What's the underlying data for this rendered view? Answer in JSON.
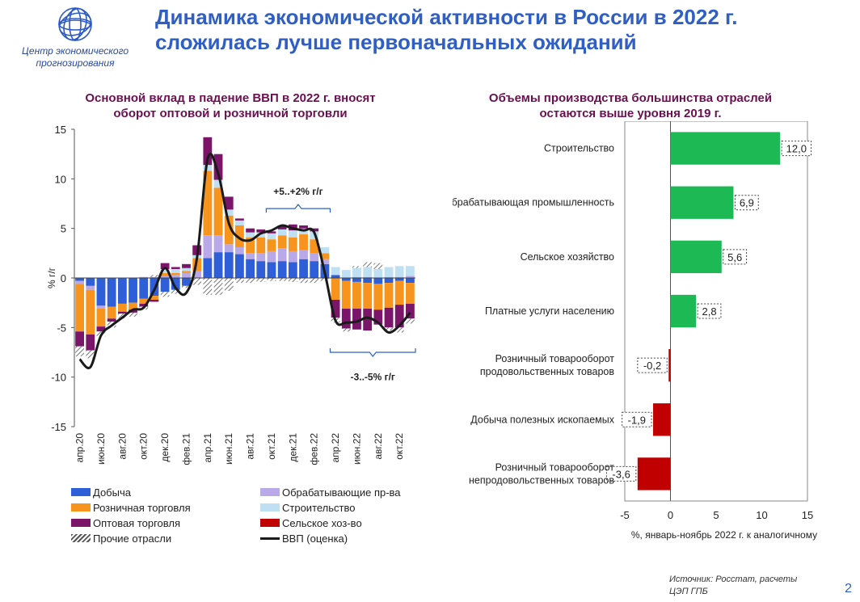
{
  "header": {
    "logo_line1": "Центр экономического",
    "logo_line2": "прогнозирования",
    "title_line1": "Динамика экономической активности в России в 2022 г.",
    "title_line2": "сложилась лучше первоначальных ожиданий"
  },
  "colors": {
    "mining": "#2e5fd8",
    "manufacturing": "#b9a9e8",
    "retail": "#f7941d",
    "construction": "#bfe0f2",
    "wholesale": "#7a156a",
    "agriculture": "#c00000",
    "other": "#6a6a6a",
    "gdp_line": "#1a1a1a",
    "positive_bar": "#1db954",
    "negative_bar": "#c00000",
    "title": "#2f5fc4",
    "subtitle": "#6a0f50"
  },
  "chart_data": [
    {
      "type": "bar",
      "stacked": true,
      "title_line1": "Основной вклад в падение ВВП в 2022 г. вносят",
      "title_line2": "оборот оптовой и розничной торговли",
      "ylabel": "% г/г",
      "ylim": [
        -15,
        15
      ],
      "yticks": [
        15,
        10,
        5,
        0,
        -5,
        -10,
        -15
      ],
      "categories": [
        "апр.20",
        "май.20",
        "июн.20",
        "июл.20",
        "авг.20",
        "сен.20",
        "окт.20",
        "ноя.20",
        "дек.20",
        "янв.21",
        "фев.21",
        "мар.21",
        "апр.21",
        "май.21",
        "июн.21",
        "июл.21",
        "авг.21",
        "сен.21",
        "окт.21",
        "ноя.21",
        "дек.21",
        "янв.22",
        "фев.22",
        "мар.22",
        "апр.22",
        "май.22",
        "июн.22",
        "июл.22",
        "авг.22",
        "сен.22",
        "окт.22",
        "ноя.22"
      ],
      "tick_labels": [
        "апр.20",
        "",
        "июн.20",
        "",
        "авг.20",
        "",
        "окт.20",
        "",
        "дек.20",
        "",
        "фев.21",
        "",
        "апр.21",
        "",
        "июн.21",
        "",
        "авг.21",
        "",
        "окт.21",
        "",
        "дек.21",
        "",
        "фев.22",
        "",
        "апр.22",
        "",
        "июн.22",
        "",
        "авг.22",
        "",
        "окт.22",
        ""
      ],
      "series": [
        {
          "name": "Добыча",
          "key": "mining",
          "values": [
            -0.3,
            -0.8,
            -2.8,
            -2.9,
            -2.6,
            -2.5,
            -2.1,
            -1.8,
            -1.4,
            -1.2,
            -0.8,
            0.0,
            2.0,
            2.6,
            2.6,
            2.4,
            1.9,
            1.7,
            1.6,
            1.7,
            1.6,
            1.9,
            1.7,
            1.4,
            0.3,
            -0.3,
            -0.4,
            -0.5,
            -0.6,
            -0.5,
            -0.3,
            -0.5
          ]
        },
        {
          "name": "Обрабатывающие пр-ва",
          "key": "manufacturing",
          "values": [
            -0.3,
            -0.4,
            -0.3,
            0.0,
            0.0,
            0.0,
            0.1,
            0.1,
            0.2,
            0.3,
            0.5,
            0.7,
            2.3,
            1.7,
            0.8,
            0.7,
            0.6,
            0.8,
            1.1,
            1.3,
            1.1,
            0.9,
            0.8,
            0.5,
            0.0,
            0.0,
            0.1,
            0.1,
            0.0,
            0.1,
            0.1,
            0.2
          ]
        },
        {
          "name": "Розничная торговля",
          "key": "retail",
          "values": [
            -4.8,
            -4.5,
            -1.8,
            -1.2,
            -0.8,
            -0.7,
            -0.5,
            -0.4,
            0.3,
            0.2,
            0.2,
            1.3,
            6.5,
            4.8,
            2.9,
            2.2,
            1.6,
            1.6,
            1.2,
            1.3,
            1.4,
            1.6,
            1.4,
            0.6,
            -2.2,
            -2.8,
            -2.7,
            -2.6,
            -2.6,
            -2.5,
            -2.4,
            -2.1
          ]
        },
        {
          "name": "Строительство",
          "key": "construction",
          "values": [
            0.0,
            0.0,
            0.0,
            0.0,
            0.0,
            0.0,
            0.0,
            0.0,
            0.4,
            0.4,
            0.3,
            0.3,
            0.6,
            0.8,
            0.6,
            0.5,
            0.5,
            0.5,
            0.6,
            0.6,
            0.7,
            0.6,
            0.8,
            0.6,
            0.8,
            0.8,
            0.9,
            1.0,
            0.9,
            1.0,
            1.1,
            1.0
          ]
        },
        {
          "name": "Оптовая торговля",
          "key": "wholesale",
          "values": [
            -1.5,
            -1.6,
            -0.5,
            -0.3,
            -0.2,
            -0.3,
            -0.3,
            -0.2,
            0.6,
            0.2,
            0.4,
            1.0,
            2.8,
            2.6,
            1.3,
            0.2,
            0.4,
            0.3,
            0.2,
            0.4,
            0.6,
            0.3,
            0.3,
            0.0,
            -1.8,
            -2.0,
            -2.1,
            -2.2,
            -1.5,
            -2.0,
            -2.3,
            -1.5
          ]
        },
        {
          "name": "Сельское хоз-во",
          "key": "agriculture",
          "values": [
            0.0,
            0.0,
            0.0,
            0.0,
            0.0,
            0.0,
            0.0,
            0.0,
            0.0,
            0.0,
            0.0,
            0.0,
            0.0,
            0.0,
            0.0,
            0.0,
            0.0,
            0.0,
            0.0,
            0.0,
            0.0,
            0.0,
            0.0,
            0.0,
            0.0,
            0.0,
            0.0,
            0.0,
            0.0,
            0.0,
            0.0,
            0.0
          ]
        },
        {
          "name": "Прочие отрасли",
          "key": "other",
          "values": [
            -1.0,
            -0.8,
            -0.5,
            -0.6,
            -0.5,
            -0.4,
            -0.3,
            0.2,
            -0.5,
            -0.4,
            -0.2,
            -0.7,
            -1.7,
            -1.7,
            -1.3,
            -0.5,
            -0.5,
            -0.4,
            -0.3,
            -0.3,
            -0.4,
            -0.5,
            -0.5,
            -0.3,
            -0.5,
            -0.3,
            0.2,
            0.5,
            0.6,
            -0.3,
            -0.5,
            -0.5
          ]
        }
      ],
      "line": {
        "name": "ВВП (оценка)",
        "values": [
          -8.2,
          -9.0,
          -5.8,
          -4.8,
          -4.0,
          -3.2,
          -3.0,
          -1.2,
          1.0,
          -1.0,
          -1.5,
          2.0,
          12.0,
          10.5,
          5.5,
          4.0,
          3.8,
          4.5,
          4.8,
          5.3,
          5.0,
          4.8,
          4.6,
          0.5,
          -4.3,
          -4.5,
          -4.4,
          -4.0,
          -4.5,
          -5.5,
          -4.8,
          -3.5
        ]
      },
      "annotations": [
        {
          "text": "+5..+2% г/г",
          "from": "окт.21",
          "to": "мар.22"
        },
        {
          "text": "-3..-5% г/г",
          "from": "апр.22",
          "to": "ноя.22"
        }
      ]
    },
    {
      "type": "bar",
      "orientation": "horizontal",
      "title_line1": "Объемы производства большинства отраслей",
      "title_line2": "остаются выше уровня 2019 г.",
      "xlabel": "%, январь-ноябрь 2022 г. к аналогичному",
      "xlim": [
        -5,
        15
      ],
      "xticks": [
        -5,
        0,
        5,
        10,
        15
      ],
      "categories": [
        [
          "Строительство"
        ],
        [
          "Обрабатывающая промышленность"
        ],
        [
          "Сельское хозяйство"
        ],
        [
          "Платные услуги населению"
        ],
        [
          "Розничный товарооборот",
          "продовольственных товаров"
        ],
        [
          "Добыча полезных ископаемых"
        ],
        [
          "Розничный товарооборот",
          "непродовольственных товаров"
        ]
      ],
      "values": [
        12.0,
        6.9,
        5.6,
        2.8,
        -0.2,
        -1.9,
        -3.6
      ],
      "value_labels": [
        "12,0",
        "6,9",
        "5,6",
        "2,8",
        "-0,2",
        "-1,9",
        "-3,6"
      ]
    }
  ],
  "footer": {
    "source_line1": "Источник: Росстат, расчеты",
    "source_line2": "ЦЭП ГПБ",
    "page_number": "2"
  }
}
